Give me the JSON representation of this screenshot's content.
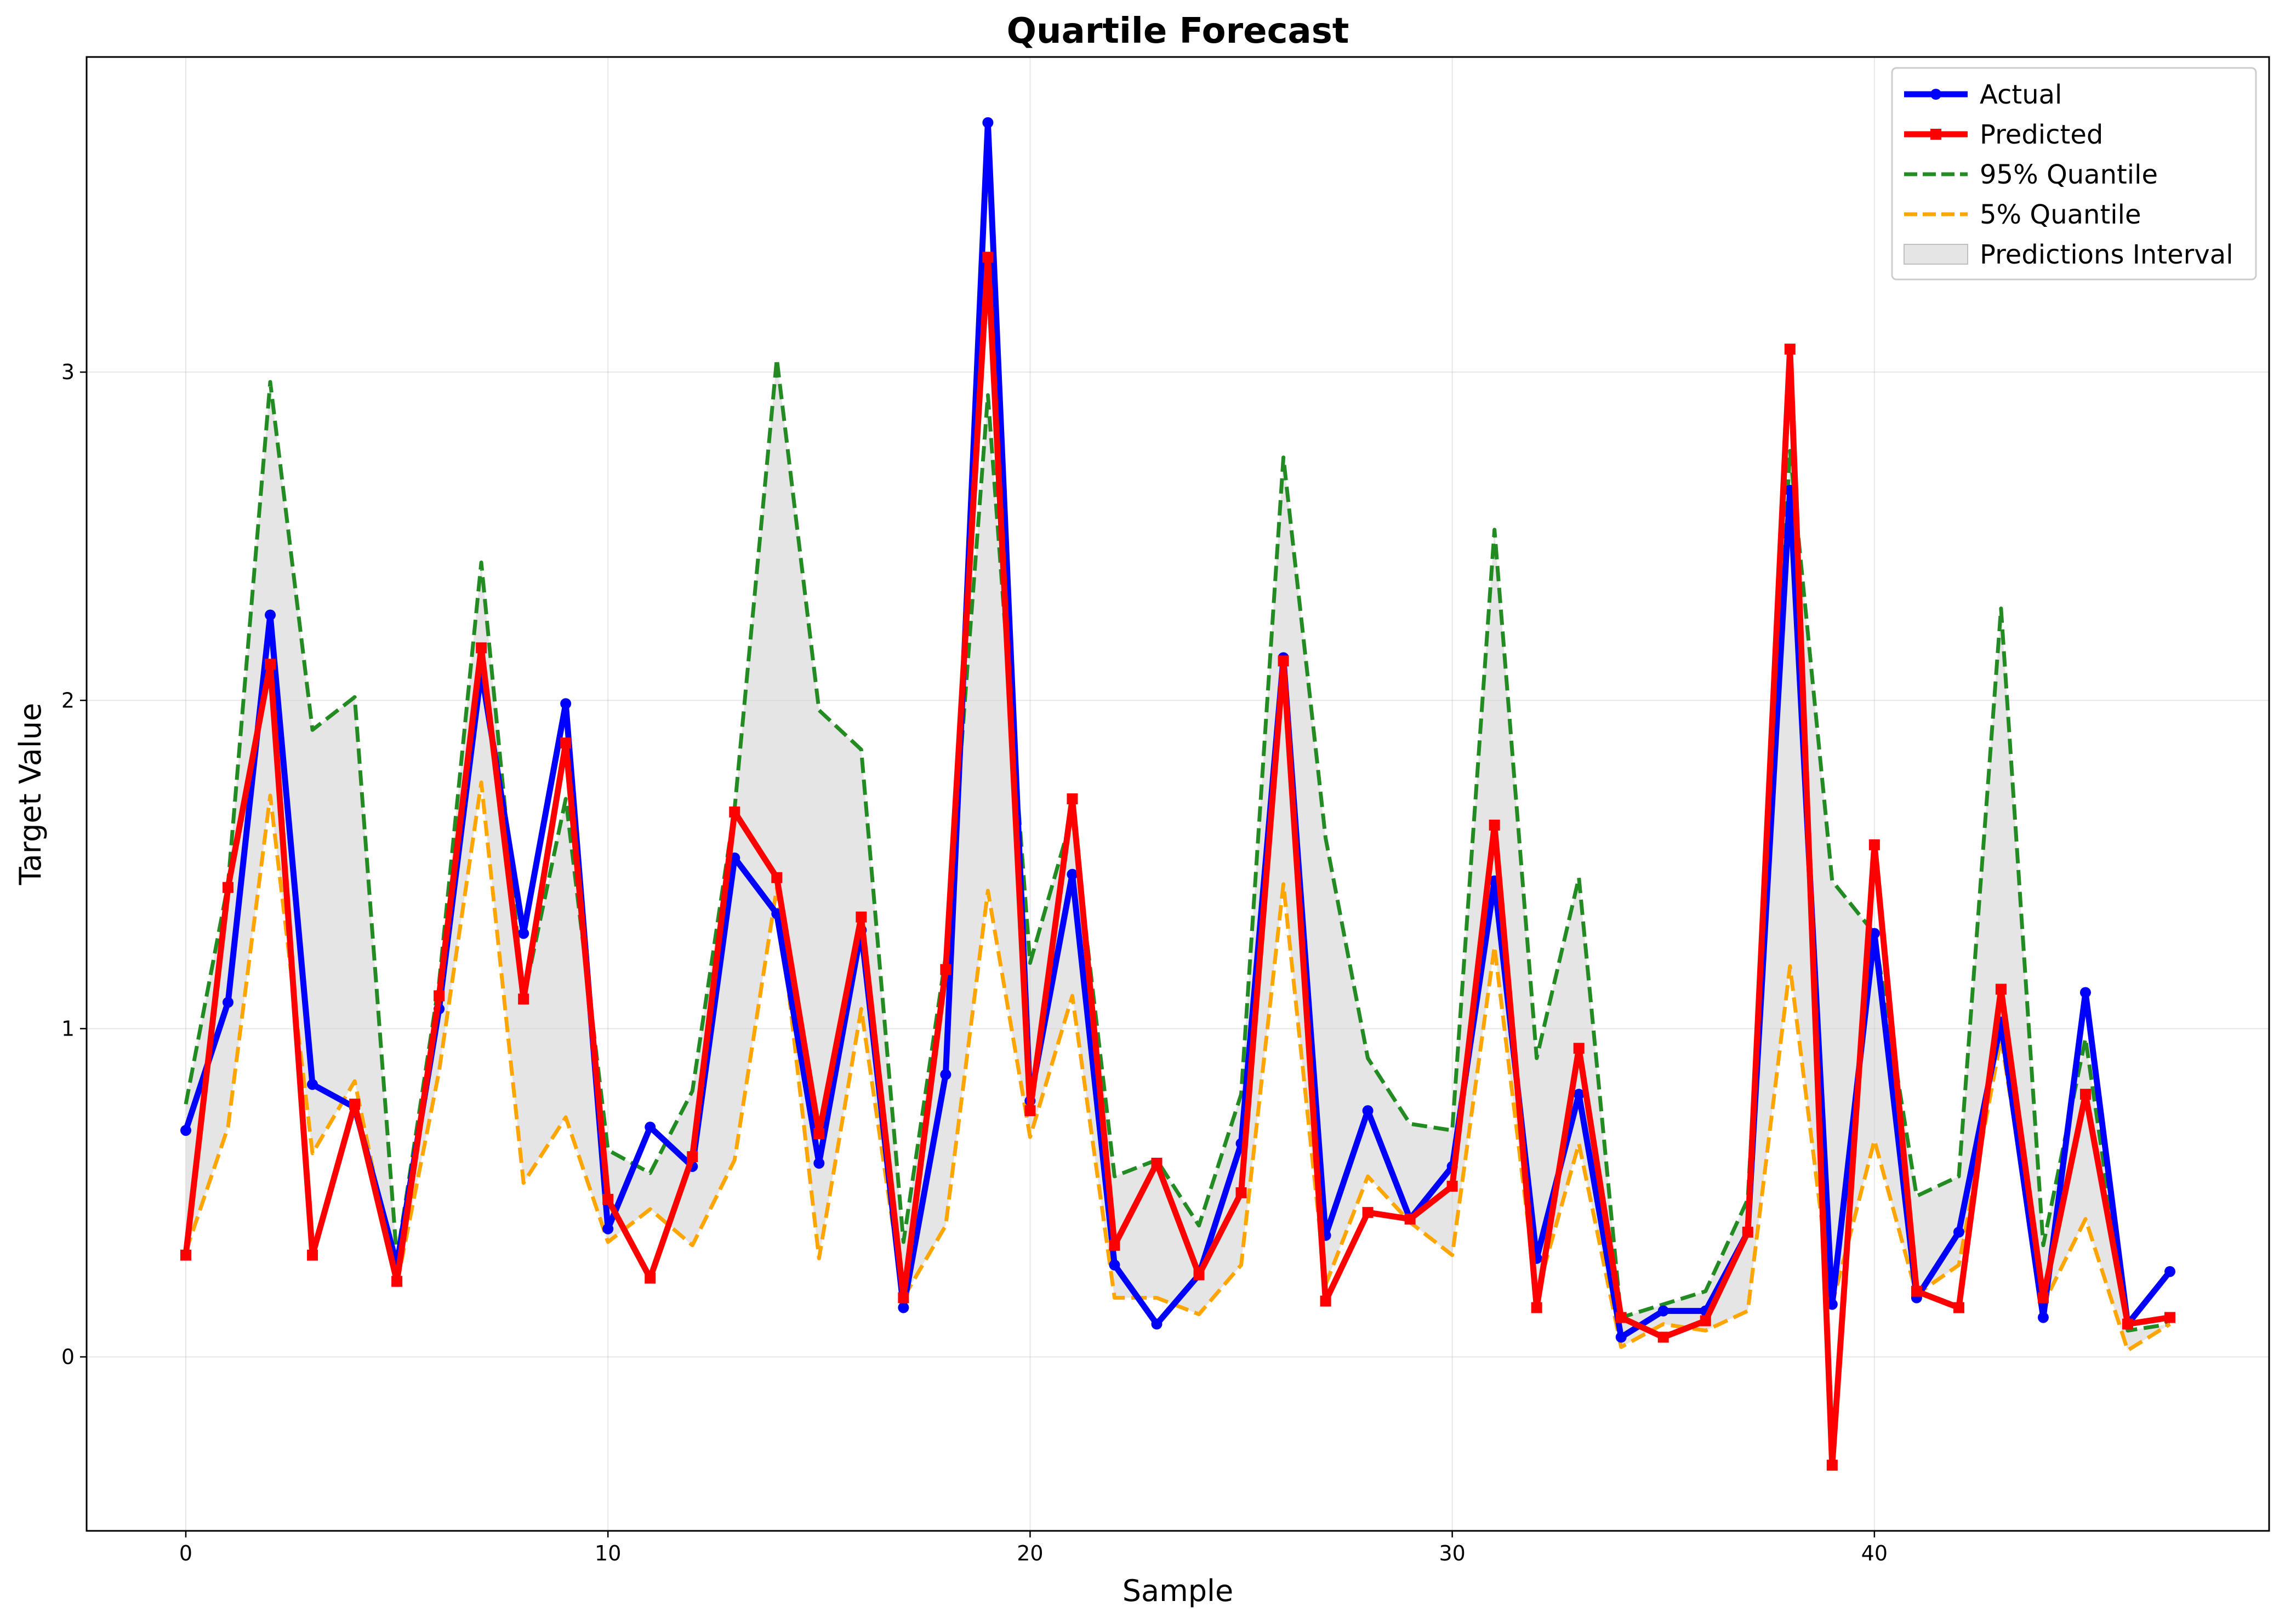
{
  "chart_data": {
    "type": "line",
    "title": "Quartile Forecast",
    "xlabel": "Sample",
    "ylabel": "Target Value",
    "xlim": [
      -2.35,
      49.35
    ],
    "ylim": [
      -0.53,
      3.96
    ],
    "xticks": [
      0,
      10,
      20,
      30,
      40
    ],
    "yticks": [
      0,
      1,
      2,
      3
    ],
    "grid": true,
    "legend_position": "top-right",
    "x": [
      0,
      1,
      2,
      3,
      4,
      5,
      6,
      7,
      8,
      9,
      10,
      11,
      12,
      13,
      14,
      15,
      16,
      17,
      18,
      19,
      20,
      21,
      22,
      23,
      24,
      25,
      26,
      27,
      28,
      29,
      30,
      31,
      32,
      33,
      34,
      35,
      36,
      37,
      38,
      39,
      40,
      41,
      42,
      43,
      44,
      45,
      46,
      47
    ],
    "series": [
      {
        "name": "Actual",
        "color": "#0000ff",
        "marker": "circle",
        "values": [
          0.69,
          1.08,
          2.26,
          0.83,
          0.76,
          0.28,
          1.06,
          2.09,
          1.29,
          1.99,
          0.39,
          0.7,
          0.58,
          1.52,
          1.35,
          0.59,
          1.3,
          0.15,
          0.86,
          3.76,
          0.78,
          1.47,
          0.28,
          0.1,
          0.25,
          0.65,
          2.13,
          0.37,
          0.75,
          0.42,
          0.58,
          1.45,
          0.3,
          0.8,
          0.06,
          0.14,
          0.14,
          0.38,
          2.64,
          0.16,
          1.29,
          0.18,
          0.38,
          1.02,
          0.12,
          1.11,
          0.1,
          0.26
        ]
      },
      {
        "name": "Predicted",
        "color": "#ff0000",
        "marker": "square",
        "values": [
          0.31,
          1.43,
          2.11,
          0.31,
          0.77,
          0.23,
          1.1,
          2.16,
          1.09,
          1.87,
          0.48,
          0.24,
          0.61,
          1.66,
          1.46,
          0.68,
          1.34,
          0.18,
          1.18,
          3.35,
          0.75,
          1.7,
          0.34,
          0.59,
          0.25,
          0.5,
          2.12,
          0.17,
          0.44,
          0.42,
          0.52,
          1.62,
          0.15,
          0.94,
          0.12,
          0.06,
          0.11,
          0.38,
          3.07,
          -0.33,
          1.56,
          0.2,
          0.15,
          1.12,
          0.18,
          0.8,
          0.1,
          0.12
        ]
      },
      {
        "name": "95% Quantile",
        "color": "#228b22",
        "dash": "dashed",
        "values": [
          0.77,
          1.44,
          2.97,
          1.91,
          2.01,
          0.3,
          1.14,
          2.42,
          1.09,
          1.7,
          0.63,
          0.56,
          0.81,
          1.67,
          3.04,
          1.97,
          1.85,
          0.35,
          1.22,
          2.93,
          1.2,
          1.65,
          0.55,
          0.6,
          0.4,
          0.8,
          2.74,
          1.58,
          0.91,
          0.71,
          0.69,
          2.52,
          0.91,
          1.46,
          0.12,
          0.16,
          0.2,
          0.48,
          2.76,
          1.45,
          1.29,
          0.49,
          0.55,
          2.28,
          0.34,
          0.97,
          0.08,
          0.1
        ]
      },
      {
        "name": "5% Quantile",
        "color": "#ffa500",
        "dash": "dashed",
        "values": [
          0.32,
          0.7,
          1.71,
          0.62,
          0.84,
          0.22,
          0.87,
          1.75,
          0.53,
          0.73,
          0.35,
          0.45,
          0.34,
          0.6,
          1.43,
          0.3,
          1.06,
          0.18,
          0.4,
          1.42,
          0.67,
          1.1,
          0.18,
          0.18,
          0.13,
          0.28,
          1.44,
          0.22,
          0.55,
          0.41,
          0.31,
          1.25,
          0.19,
          0.65,
          0.03,
          0.1,
          0.08,
          0.14,
          1.19,
          0.16,
          0.66,
          0.19,
          0.28,
          0.97,
          0.16,
          0.42,
          0.02,
          0.1
        ]
      }
    ],
    "interval": {
      "name": "Predictions Interval",
      "color": "#d3d3d3",
      "opacity": 0.6,
      "lower_series": "5% Quantile",
      "upper_series": "95% Quantile"
    }
  }
}
